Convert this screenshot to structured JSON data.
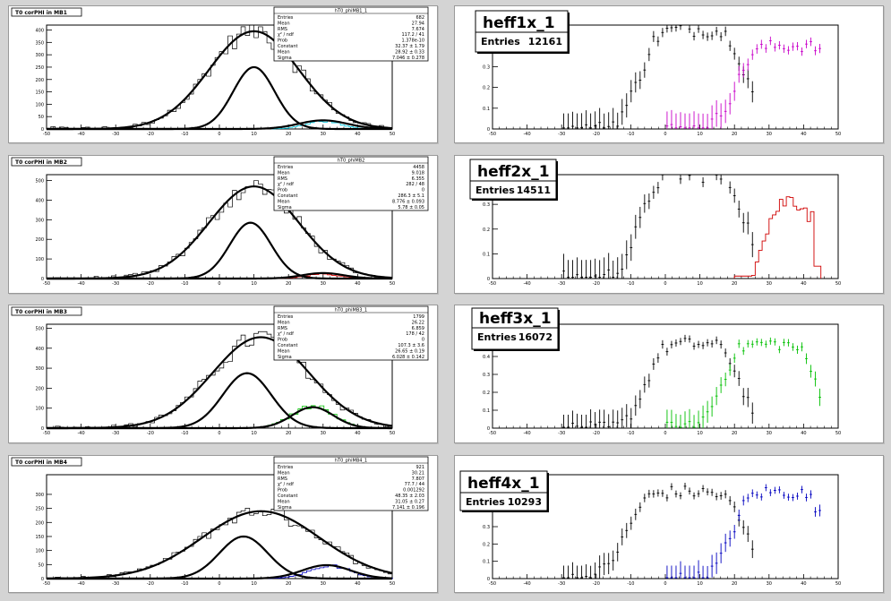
{
  "chart_data": [
    {
      "type": "histogram",
      "title": "T0 corPHI in MB1",
      "xlim": [
        -50,
        50
      ],
      "ylim": [
        0,
        420
      ],
      "xticks": [
        -50,
        -40,
        -30,
        -20,
        -10,
        0,
        10,
        20,
        30,
        40,
        50
      ],
      "yticks": [
        0,
        50,
        100,
        150,
        200,
        250,
        300,
        350,
        400
      ],
      "stats": {
        "name": "hT0_phiMB1_1",
        "rows": [
          [
            "Entries",
            "682"
          ],
          [
            "Mean",
            "27.94"
          ],
          [
            "RMS",
            "7.674"
          ],
          [
            "χ² / ndf",
            "117.2 / 41"
          ],
          [
            "Prob",
            "1.378e-10"
          ],
          [
            "Constant",
            "32.37 ± 1.79"
          ],
          [
            "Mean",
            "28.92 ± 0.33"
          ],
          [
            "Sigma",
            "7.046 ± 0.278"
          ]
        ]
      },
      "fits": [
        {
          "amp": 395,
          "mean": 10,
          "sigma": 13
        },
        {
          "amp": 250,
          "mean": 10,
          "sigma": 6
        },
        {
          "amp": 35,
          "mean": 30,
          "sigma": 7
        }
      ],
      "overlay": {
        "color": "#00c8e0",
        "amp": 32,
        "mean": 30,
        "sigma": 5
      }
    },
    {
      "type": "histogram",
      "title": "T0 corPHI in MB2",
      "xlim": [
        -50,
        50
      ],
      "ylim": [
        0,
        530
      ],
      "xticks": [
        -50,
        -40,
        -30,
        -20,
        -10,
        0,
        10,
        20,
        30,
        40,
        50
      ],
      "yticks": [
        0,
        100,
        200,
        300,
        400,
        500
      ],
      "stats": {
        "name": "hT0_phiMB2",
        "rows": [
          [
            "Entries",
            "4458"
          ],
          [
            "Mean",
            "9.018"
          ],
          [
            "RMS",
            "6.355"
          ],
          [
            "χ² / ndf",
            "282 / 48"
          ],
          [
            "Prob",
            "0"
          ],
          [
            "Constant",
            "286.3 ± 5.1"
          ],
          [
            "Mean",
            "8.776 ± 0.093"
          ],
          [
            "Sigma",
            "5.78 ± 0.05"
          ]
        ]
      },
      "fits": [
        {
          "amp": 470,
          "mean": 10,
          "sigma": 13
        },
        {
          "amp": 285,
          "mean": 9,
          "sigma": 6
        },
        {
          "amp": 28,
          "mean": 30,
          "sigma": 6
        }
      ],
      "overlay": {
        "color": "#e00000",
        "amp": 22,
        "mean": 30,
        "sigma": 5
      }
    },
    {
      "type": "histogram",
      "title": "T0 corPHI in MB3",
      "xlim": [
        -50,
        50
      ],
      "ylim": [
        0,
        520
      ],
      "xticks": [
        -50,
        -40,
        -30,
        -20,
        -10,
        0,
        10,
        20,
        30,
        40,
        50
      ],
      "yticks": [
        0,
        100,
        200,
        300,
        400,
        500
      ],
      "stats": {
        "name": "hT0_phiMB3_1",
        "rows": [
          [
            "Entries",
            "1799"
          ],
          [
            "Mean",
            "26.22"
          ],
          [
            "RMS",
            "6.859"
          ],
          [
            "χ² / ndf",
            "178 / 42"
          ],
          [
            "Prob",
            "0"
          ],
          [
            "Constant",
            "107.3 ± 3.6"
          ],
          [
            "Mean",
            "26.65 ± 0.19"
          ],
          [
            "Sigma",
            "6.028 ± 0.142"
          ]
        ]
      },
      "fits": [
        {
          "amp": 455,
          "mean": 12,
          "sigma": 14
        },
        {
          "amp": 275,
          "mean": 8,
          "sigma": 7
        },
        {
          "amp": 105,
          "mean": 27,
          "sigma": 6
        }
      ],
      "overlay": {
        "color": "#00c000",
        "amp": 110,
        "mean": 27,
        "sigma": 6
      }
    },
    {
      "type": "histogram",
      "title": "T0 corPHI in MB4",
      "xlim": [
        -50,
        50
      ],
      "ylim": [
        0,
        370
      ],
      "xticks": [
        -50,
        -40,
        -30,
        -20,
        -10,
        0,
        10,
        20,
        30,
        40,
        50
      ],
      "yticks": [
        0,
        50,
        100,
        150,
        200,
        250,
        300
      ],
      "stats": {
        "name": "hT0_phiMB4_1",
        "rows": [
          [
            "Entries",
            "921"
          ],
          [
            "Mean",
            "30.21"
          ],
          [
            "RMS",
            "7.807"
          ],
          [
            "χ² / ndf",
            "77.7 / 44"
          ],
          [
            "Prob",
            "0.001292"
          ],
          [
            "Constant",
            "48.35 ± 2.03"
          ],
          [
            "Mean",
            "31.05 ± 0.27"
          ],
          [
            "Sigma",
            "7.141 ± 0.196"
          ]
        ]
      },
      "fits": [
        {
          "amp": 240,
          "mean": 12,
          "sigma": 17
        },
        {
          "amp": 150,
          "mean": 7,
          "sigma": 7
        },
        {
          "amp": 48,
          "mean": 31,
          "sigma": 7
        }
      ],
      "overlay": {
        "color": "#0000c0",
        "amp": 45,
        "mean": 32,
        "sigma": 6
      }
    },
    {
      "type": "scatter",
      "title": "heff1x_1",
      "entries_label": "Entries",
      "entries": "12161",
      "xlim": [
        -50,
        50
      ],
      "ylim": [
        0,
        0.5
      ],
      "xticks": [
        -50,
        -40,
        -30,
        -20,
        -10,
        0,
        10,
        20,
        30,
        40,
        50
      ],
      "yticks": [
        0,
        0.1,
        0.2,
        0.3,
        0.4
      ],
      "black": {
        "center": 8,
        "width": 8,
        "peak": 0.48
      },
      "colored": {
        "color": "#c800c8",
        "center": 36,
        "width": 8,
        "peak": 0.4,
        "mode": "points"
      }
    },
    {
      "type": "scatter",
      "title": "heff2x_1",
      "entries_label": "Entries",
      "entries": "14511",
      "xlim": [
        -50,
        50
      ],
      "ylim": [
        0,
        0.42
      ],
      "xticks": [
        -50,
        -40,
        -30,
        -20,
        -10,
        0,
        10,
        20,
        30,
        40,
        50
      ],
      "yticks": [
        0,
        0.1,
        0.2,
        0.3,
        0.4
      ],
      "black": {
        "center": 8,
        "width": 8,
        "peak": 0.42
      },
      "colored": {
        "color": "#d00000",
        "center": 36,
        "width": 8,
        "peak": 0.32,
        "mode": "hist"
      }
    },
    {
      "type": "scatter",
      "title": "heff3x_1",
      "entries_label": "Entries",
      "entries": "16072",
      "xlim": [
        -50,
        50
      ],
      "ylim": [
        0,
        0.58
      ],
      "xticks": [
        -50,
        -40,
        -30,
        -20,
        -10,
        0,
        10,
        20,
        30,
        40,
        50
      ],
      "yticks": [
        0,
        0.1,
        0.2,
        0.3,
        0.4,
        0.5
      ],
      "black": {
        "center": 8,
        "width": 7,
        "peak": 0.47
      },
      "colored": {
        "color": "#00c000",
        "center": 30,
        "width": 7,
        "peak": 0.47,
        "mode": "points"
      }
    },
    {
      "type": "scatter",
      "title": "heff4x_1",
      "entries_label": "Entries",
      "entries": "10293",
      "xlim": [
        -50,
        50
      ],
      "ylim": [
        0,
        0.6
      ],
      "xticks": [
        -50,
        -40,
        -30,
        -20,
        -10,
        0,
        10,
        20,
        30,
        40,
        50
      ],
      "yticks": [
        0,
        0.1,
        0.2,
        0.3,
        0.4,
        0.5
      ],
      "black": {
        "center": 6,
        "width": 9,
        "peak": 0.5
      },
      "colored": {
        "color": "#0000c0",
        "center": 33,
        "width": 7,
        "peak": 0.5,
        "mode": "points"
      }
    }
  ]
}
